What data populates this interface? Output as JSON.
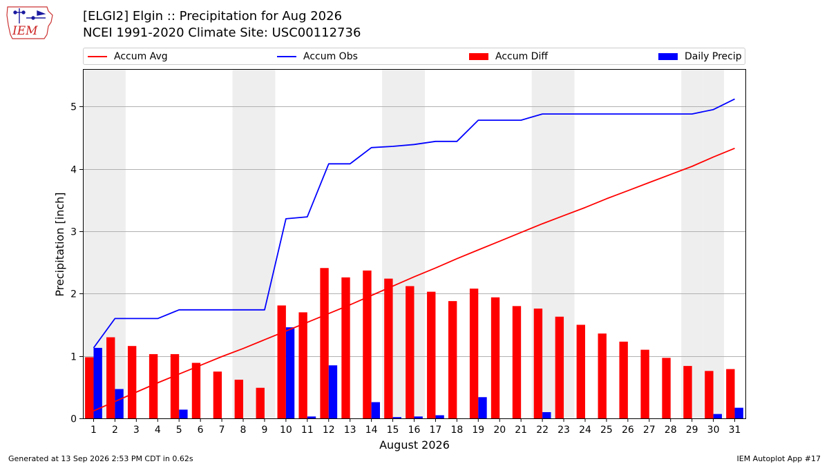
{
  "header": {
    "title_line1": "[ELGI2] Elgin :: Precipitation for Aug 2026",
    "title_line2": "NCEI 1991-2020 Climate Site: USC00112736",
    "logo_text": "IEM"
  },
  "footer": {
    "generated": "Generated at 13 Sep 2026 2:53 PM CDT in 0.62s",
    "app": "IEM Autoplot App #17"
  },
  "colors": {
    "accum_avg": "#ff0000",
    "accum_obs": "#0000ff",
    "accum_diff": "#ff0000",
    "daily_precip": "#0000ff",
    "weekend_shade": "#eeeeee",
    "grid": "#b0b0b0"
  },
  "chart_data": {
    "type": "bar",
    "title": "[ELGI2] Elgin :: Precipitation for Aug 2026",
    "subtitle": "NCEI 1991-2020 Climate Site: USC00112736",
    "xlabel": "August 2026",
    "ylabel": "Precipitation [inch]",
    "categories": [
      "1",
      "2",
      "3",
      "4",
      "5",
      "6",
      "7",
      "8",
      "9",
      "10",
      "11",
      "12",
      "13",
      "14",
      "15",
      "16",
      "17",
      "18",
      "19",
      "20",
      "21",
      "22",
      "23",
      "24",
      "25",
      "26",
      "27",
      "28",
      "29",
      "30",
      "31"
    ],
    "ylim": [
      0,
      5.6
    ],
    "yticks": [
      0,
      1,
      2,
      3,
      4,
      5
    ],
    "grid": "horizontal",
    "legend_position": "top",
    "shaded_weekend_days": [
      1,
      2,
      8,
      9,
      15,
      16,
      22,
      23,
      29,
      30
    ],
    "series": [
      {
        "name": "Accum Avg",
        "type": "line",
        "values": [
          0.12,
          0.27,
          0.42,
          0.57,
          0.71,
          0.85,
          0.99,
          1.12,
          1.26,
          1.4,
          1.54,
          1.68,
          1.82,
          1.97,
          2.12,
          2.27,
          2.41,
          2.56,
          2.7,
          2.84,
          2.98,
          3.12,
          3.25,
          3.38,
          3.52,
          3.65,
          3.78,
          3.91,
          4.04,
          4.19,
          4.33
        ]
      },
      {
        "name": "Accum Obs",
        "type": "line",
        "values": [
          1.13,
          1.6,
          1.6,
          1.6,
          1.74,
          1.74,
          1.74,
          1.74,
          1.74,
          3.2,
          3.23,
          4.08,
          4.08,
          4.34,
          4.36,
          4.39,
          4.44,
          4.44,
          4.78,
          4.78,
          4.78,
          4.88,
          4.88,
          4.88,
          4.88,
          4.88,
          4.88,
          4.88,
          4.88,
          4.95,
          5.12
        ]
      },
      {
        "name": "Accum Diff",
        "type": "bar",
        "values": [
          0.98,
          1.3,
          1.16,
          1.03,
          1.03,
          0.89,
          0.75,
          0.62,
          0.49,
          1.81,
          1.7,
          2.41,
          2.26,
          2.37,
          2.24,
          2.12,
          2.03,
          1.88,
          2.08,
          1.94,
          1.8,
          1.76,
          1.63,
          1.5,
          1.36,
          1.23,
          1.1,
          0.97,
          0.84,
          0.76,
          0.79
        ]
      },
      {
        "name": "Daily Precip",
        "type": "bar",
        "values": [
          1.13,
          0.47,
          0.0,
          0.0,
          0.14,
          0.0,
          0.0,
          0.0,
          0.0,
          1.46,
          0.03,
          0.85,
          0.0,
          0.26,
          0.02,
          0.03,
          0.05,
          0.0,
          0.34,
          0.0,
          0.0,
          0.1,
          0.0,
          0.0,
          0.0,
          0.0,
          0.0,
          0.0,
          0.0,
          0.07,
          0.17
        ]
      }
    ]
  }
}
